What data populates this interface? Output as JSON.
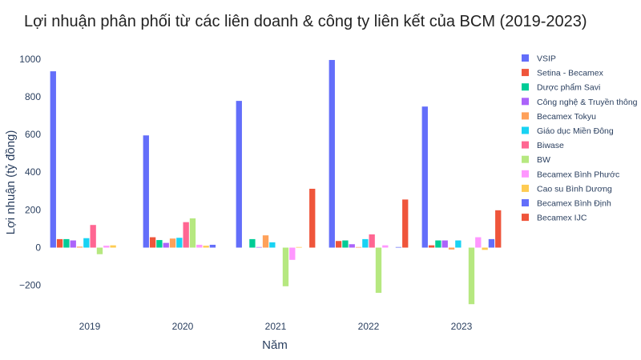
{
  "chart_data": {
    "type": "bar",
    "title": "Lợi nhuận phân phối từ các liên doanh & công ty liên kết của BCM (2019-2023)",
    "xlabel": "Năm",
    "ylabel": "Lợi nhuận (tỷ đồng)",
    "categories": [
      "2019",
      "2020",
      "2021",
      "2022",
      "2023"
    ],
    "ylim": [
      -350,
      1050
    ],
    "yticks": [
      -200,
      0,
      200,
      400,
      600,
      800,
      1000
    ],
    "ytick_labels": [
      "−200",
      "0",
      "200",
      "400",
      "600",
      "800",
      "1000"
    ],
    "grid": false,
    "legend_position": "right",
    "series": [
      {
        "name": "VSIP",
        "color": "#636efa",
        "values": [
          935,
          595,
          778,
          995,
          748
        ]
      },
      {
        "name": "Setina - Becamex",
        "color": "#ef553b",
        "values": [
          45,
          55,
          0,
          35,
          12
        ]
      },
      {
        "name": "Dược phẩm Savi",
        "color": "#00cc96",
        "values": [
          45,
          40,
          45,
          38,
          38
        ]
      },
      {
        "name": "Công nghệ & Truyền thông",
        "color": "#ab63fa",
        "values": [
          38,
          25,
          3,
          18,
          38
        ]
      },
      {
        "name": "Becamex Tokyu",
        "color": "#ffa15a",
        "values": [
          5,
          48,
          65,
          3,
          -10
        ]
      },
      {
        "name": "Giáo dục Miền Đông",
        "color": "#19d3f3",
        "values": [
          50,
          52,
          28,
          45,
          38
        ]
      },
      {
        "name": "Biwase",
        "color": "#ff6692",
        "values": [
          120,
          135,
          0,
          70,
          0
        ]
      },
      {
        "name": "BW",
        "color": "#b6e880",
        "values": [
          -35,
          155,
          -205,
          -240,
          -300
        ]
      },
      {
        "name": "Becamex Bình Phước",
        "color": "#ff97ff",
        "values": [
          10,
          15,
          -65,
          12,
          55
        ]
      },
      {
        "name": "Cao su Bình Dương",
        "color": "#fecb52",
        "values": [
          12,
          10,
          3,
          0,
          -12
        ]
      },
      {
        "name": "Becamex Bình Định",
        "color": "#636efa",
        "values": [
          0,
          15,
          0,
          3,
          45
        ]
      },
      {
        "name": "Becamex IJC",
        "color": "#ef553b",
        "values": [
          0,
          0,
          312,
          255,
          198
        ]
      }
    ]
  }
}
